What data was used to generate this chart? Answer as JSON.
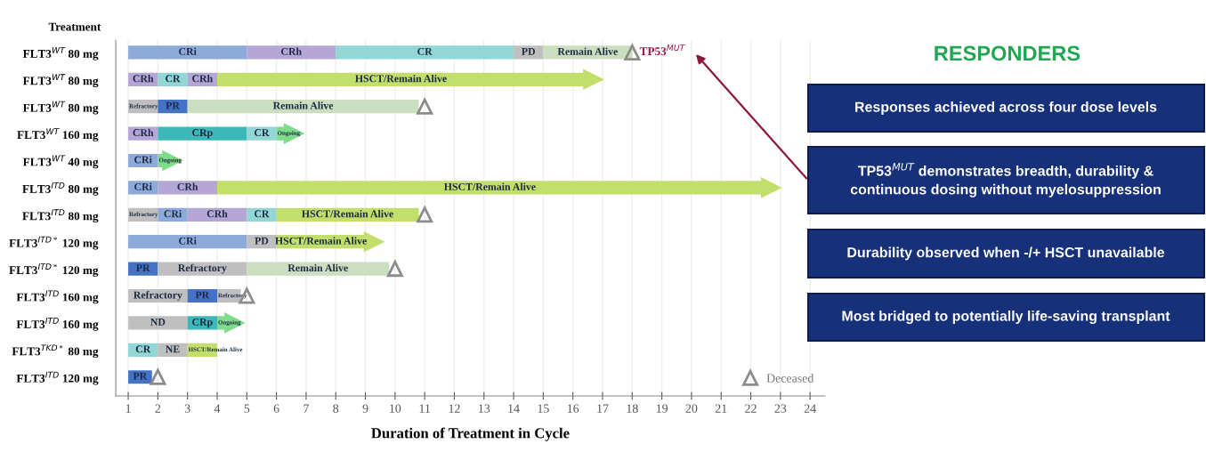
{
  "chart_data": {
    "type": "bar",
    "orientation": "horizontal",
    "ylabel": "Treatment",
    "xlabel": "Duration of Treatment in Cycle",
    "categories": [
      "FLT3$^{WT}$ 80 mg",
      "FLT3$^{WT}$ 80 mg",
      "FLT3$^{WT}$ 80 mg",
      "FLT3$^{WT}$ 160 mg",
      "FLT3$^{WT}$ 40 mg",
      "FLT3$^{ITD}$ 80 mg",
      "FLT3$^{ITD}$ 80 mg",
      "FLT3$^{ITD*}$ 120 mg",
      "FLT3$^{ITD*}$ 120 mg",
      "FLT3$^{ITD}$ 160 mg",
      "FLT3$^{ITD}$ 160 mg",
      "FLT3$^{TKD*}$ 80 mg",
      "FLT3$^{ITD}$ 120 mg"
    ],
    "series": [
      {
        "base": [
          1,
          1,
          1,
          1,
          1,
          1,
          1,
          1,
          1,
          1,
          1,
          1,
          1
        ],
        "values": [
          4,
          1,
          1,
          1,
          1,
          1,
          1,
          4,
          1,
          2,
          2,
          1,
          0.8
        ],
        "colors": [
          "#8eaadb",
          "#b4a7d6",
          "#bfbfbf",
          "#b4a7d6",
          "#8eaadb",
          "#8eaadb",
          "#bfbfbf",
          "#8eaadb",
          "#4472c4",
          "#bfbfbf",
          "#bfbfbf",
          "#92d6d6",
          "#4472c4"
        ],
        "value_labels": [
          "CRi",
          "CRh",
          "Refractory",
          "CRh",
          "CRi",
          "CRi",
          "Refractory",
          "CRi",
          "PR",
          "Refractory",
          "ND",
          "CR",
          "PR"
        ]
      },
      {
        "base": [
          5,
          2,
          2,
          2,
          2,
          2,
          2,
          5,
          2,
          3,
          3,
          2,
          null
        ],
        "values": [
          3,
          1,
          1,
          3,
          0.2,
          2,
          1,
          1,
          3,
          1,
          1,
          1,
          null
        ],
        "colors": [
          "#b4a7d6",
          "#92d6d6",
          "#4472c4",
          "#3cb8b8",
          "#7fdc8a",
          "#b4a7d6",
          "#8eaadb",
          "#bfbfbf",
          "#bfbfbf",
          "#4472c4",
          "#3cb8b8",
          "#bfbfbf",
          null
        ],
        "value_labels": [
          "CRh",
          "CR",
          "PR",
          "CRp",
          "Ongoing",
          "CRh",
          "CRi",
          "PD",
          "Refractory",
          "PR",
          "CRp",
          "NE",
          null
        ]
      },
      {
        "base": [
          8,
          3,
          3,
          5,
          null,
          4,
          3,
          6,
          5,
          4,
          4,
          3,
          null
        ],
        "values": [
          6,
          1,
          7.8,
          1,
          null,
          18.4,
          2,
          3,
          4.8,
          0.8,
          0.3,
          1,
          null
        ],
        "colors": [
          "#92d6d6",
          "#b4a7d6",
          "#c9dfc0",
          "#92d6d6",
          null,
          "#c2df6c",
          "#b4a7d6",
          "#c2df6c",
          "#c9dfc0",
          "#bfbfbf",
          "#7fdc8a",
          "#c2df6c",
          null
        ],
        "value_labels": [
          "CR",
          "CRh",
          "Remain Alive",
          "CR",
          null,
          "HSCT/Remain Alive",
          "CRh",
          "HSCT/Remain Alive",
          "Remain Alive",
          "Refractory",
          "Ongoing",
          "HSCT/Remain Alive",
          null
        ]
      },
      {
        "base": [
          14,
          4,
          null,
          6,
          null,
          null,
          5,
          null,
          null,
          null,
          null,
          null,
          null
        ],
        "values": [
          1,
          12.4,
          null,
          0.3,
          null,
          null,
          1,
          null,
          null,
          null,
          null,
          null,
          null
        ],
        "colors": [
          "#bfbfbf",
          "#c2df6c",
          null,
          "#7fdc8a",
          null,
          null,
          "#92d6d6",
          null,
          null,
          null,
          null,
          null,
          null
        ],
        "value_labels": [
          "PD",
          "HSCT/Remain Alive",
          null,
          "Ongoing",
          null,
          null,
          "CR",
          null,
          null,
          null,
          null,
          null,
          null
        ]
      },
      {
        "base": [
          15,
          null,
          null,
          null,
          null,
          null,
          6,
          null,
          null,
          null,
          null,
          null,
          null
        ],
        "values": [
          3,
          null,
          null,
          null,
          null,
          null,
          4.8,
          null,
          null,
          null,
          null,
          null,
          null
        ],
        "colors": [
          "#c9dfc0",
          null,
          null,
          null,
          null,
          null,
          "#c2df6c",
          null,
          null,
          null,
          null,
          null,
          null
        ],
        "value_labels": [
          "Remain Alive",
          null,
          null,
          null,
          null,
          null,
          "HSCT/Remain Alive",
          null,
          null,
          null,
          null,
          null,
          null
        ]
      },
      {
        "type": "scatter",
        "marker": "triangle",
        "values": [
          null,
          16.7,
          null,
          6.6,
          2.5,
          22.7,
          null,
          9.3,
          null,
          null,
          4.6,
          null,
          null
        ],
        "colors": [
          null,
          "#c2df6c",
          null,
          "#7fdc8a",
          "#7fdc8a",
          "#c2df6c",
          null,
          "#c2df6c",
          null,
          null,
          "#7fdc8a",
          null,
          null
        ]
      },
      {
        "type": "scatter",
        "name": "Deceased",
        "marker": "triangle",
        "color": "#8c8c8c",
        "values": [
          18,
          null,
          11,
          null,
          null,
          null,
          11,
          null,
          10,
          5,
          null,
          null,
          2
        ]
      }
    ],
    "xlim": [
      0.58,
      24.5
    ],
    "xticks": [
      1,
      2,
      3,
      4,
      5,
      6,
      7,
      8,
      9,
      10,
      11,
      12,
      13,
      14,
      15,
      16,
      17,
      18,
      19,
      20,
      21,
      22,
      23,
      24
    ],
    "grid": "x",
    "legend": "bottom right",
    "annotations": [
      "RESPONDERS",
      "Responses achieved across four dose levels",
      "TP53$^{MUT}$ demonstrates breadth, durability &\ncontinuous dosing without myelosuppression",
      "Durability observed when -/+ HSCT unavailable",
      "Most bridged to potentially life-saving transplant",
      {
        "text": "TP53$^{MUT}$",
        "x": 18,
        "y": "FLT3$^{WT}$ 80 mg"
      }
    ]
  }
}
